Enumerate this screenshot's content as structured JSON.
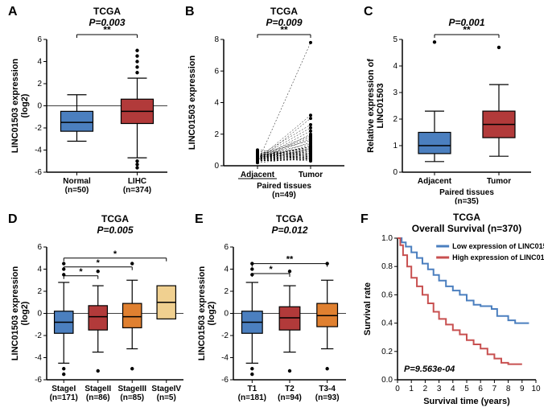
{
  "panelA": {
    "label": "A",
    "type": "boxplot",
    "title": "TCGA",
    "subtitle": "P=0.003",
    "sig_marker": "**",
    "ylabel": "LINC01503 expression\n(log2)",
    "ylim": [
      -6,
      6
    ],
    "ytick_step": 2,
    "categories": [
      "Normal\n(n=50)",
      "LIHC\n(n=374)"
    ],
    "boxes": [
      {
        "color": "#4b7fbf",
        "median": -1.5,
        "q1": -2.3,
        "q3": -0.5,
        "wlo": -3.2,
        "whi": 1.0,
        "outliers": []
      },
      {
        "color": "#b23a3a",
        "median": -0.5,
        "q1": -1.6,
        "q3": 0.6,
        "wlo": -4.7,
        "whi": 2.5,
        "outliers": [
          3.0,
          3.5,
          4.0,
          4.5,
          5.0,
          -5.0,
          -5.3,
          -5.6
        ]
      }
    ],
    "axis_color": "#000000",
    "box_border": "#000000",
    "whisker_color": "#000000",
    "outlier_color": "#000000",
    "background": "#ffffff",
    "title_fontsize": 12,
    "label_fontsize": 11,
    "tick_fontsize": 10
  },
  "panelB": {
    "label": "B",
    "type": "paired-dot-line",
    "title": "TCGA",
    "subtitle": "P=0.009",
    "sig_marker": "**",
    "ylabel": "LINC01503 expression",
    "ylim": [
      0,
      8
    ],
    "ytick_step": 2,
    "categories": [
      "Adjacent",
      "Tumor"
    ],
    "xgroup_label": "Paired tissues\n(n=49)",
    "pairs": [
      [
        0.3,
        0.4
      ],
      [
        0.2,
        0.5
      ],
      [
        0.4,
        0.6
      ],
      [
        0.3,
        0.7
      ],
      [
        0.5,
        0.8
      ],
      [
        0.4,
        0.9
      ],
      [
        0.6,
        1.0
      ],
      [
        0.3,
        1.1
      ],
      [
        0.5,
        1.2
      ],
      [
        0.4,
        1.3
      ],
      [
        0.6,
        1.4
      ],
      [
        0.3,
        1.5
      ],
      [
        0.7,
        1.6
      ],
      [
        0.4,
        1.7
      ],
      [
        0.5,
        1.8
      ],
      [
        0.6,
        1.9
      ],
      [
        0.3,
        2.0
      ],
      [
        0.8,
        0.4
      ],
      [
        0.7,
        0.5
      ],
      [
        0.9,
        0.6
      ],
      [
        0.4,
        2.2
      ],
      [
        0.5,
        2.4
      ],
      [
        0.6,
        2.6
      ],
      [
        0.3,
        3.0
      ],
      [
        0.4,
        3.2
      ],
      [
        0.5,
        0.3
      ],
      [
        0.8,
        0.5
      ],
      [
        1.0,
        0.7
      ],
      [
        0.6,
        0.4
      ],
      [
        0.9,
        0.6
      ],
      [
        0.3,
        0.8
      ],
      [
        0.4,
        1.0
      ],
      [
        0.5,
        1.2
      ],
      [
        0.2,
        7.8
      ],
      [
        0.6,
        0.9
      ],
      [
        0.7,
        1.1
      ],
      [
        0.3,
        0.5
      ],
      [
        0.4,
        0.7
      ],
      [
        0.5,
        0.9
      ],
      [
        0.6,
        1.1
      ],
      [
        0.3,
        0.6
      ],
      [
        0.4,
        0.8
      ],
      [
        0.5,
        1.0
      ],
      [
        0.6,
        1.2
      ],
      [
        0.3,
        0.4
      ],
      [
        0.4,
        0.6
      ],
      [
        0.5,
        0.8
      ],
      [
        0.6,
        1.0
      ],
      [
        0.3,
        0.5
      ]
    ],
    "point_color": "#000000",
    "line_color": "#000000",
    "axis_color": "#000000",
    "background": "#ffffff",
    "title_fontsize": 12,
    "label_fontsize": 11,
    "tick_fontsize": 10,
    "underline_adjacent": true
  },
  "panelC": {
    "label": "C",
    "type": "boxplot",
    "title": "",
    "subtitle": "P=0.001",
    "sig_marker": "**",
    "ylabel": "Relative expression of\nLINC01503",
    "ylim": [
      0,
      5
    ],
    "ytick_step": 1,
    "categories": [
      "Adjacent",
      "Tumor"
    ],
    "xgroup_label": "Paired tissues\n(n=35)",
    "boxes": [
      {
        "color": "#4b7fbf",
        "median": 1.0,
        "q1": 0.7,
        "q3": 1.5,
        "wlo": 0.4,
        "whi": 2.3,
        "outliers": [
          4.9
        ]
      },
      {
        "color": "#b23a3a",
        "median": 1.8,
        "q1": 1.3,
        "q3": 2.3,
        "wlo": 0.6,
        "whi": 3.3,
        "outliers": [
          4.7
        ]
      }
    ],
    "axis_color": "#000000",
    "box_border": "#000000",
    "background": "#ffffff",
    "title_fontsize": 12,
    "label_fontsize": 11,
    "tick_fontsize": 10
  },
  "panelD": {
    "label": "D",
    "type": "boxplot",
    "title": "TCGA",
    "subtitle": "P=0.005",
    "ylabel": "LINC01503 expression\n(log2)",
    "ylim": [
      -6,
      6
    ],
    "ytick_step": 2,
    "categories": [
      "StageI\n(n=171)",
      "StageII\n(n=86)",
      "StageIII\n(n=85)",
      "StageIV\n(n=5)"
    ],
    "boxes": [
      {
        "color": "#4b7fbf",
        "median": -0.8,
        "q1": -1.8,
        "q3": 0.2,
        "wlo": -4.5,
        "whi": 2.8,
        "outliers": [
          3.5,
          4.0,
          4.5,
          -5.0,
          -5.5
        ]
      },
      {
        "color": "#b23a3a",
        "median": -0.3,
        "q1": -1.5,
        "q3": 0.7,
        "wlo": -3.5,
        "whi": 2.5,
        "outliers": [
          3.8,
          -5.2
        ]
      },
      {
        "color": "#e08030",
        "median": -0.3,
        "q1": -1.3,
        "q3": 0.9,
        "wlo": -3.2,
        "whi": 3.0,
        "outliers": [
          4.5,
          -5.0
        ]
      },
      {
        "color": "#f0d090",
        "median": 1.0,
        "q1": -0.5,
        "q3": 2.5,
        "wlo": -0.5,
        "whi": 2.5,
        "outliers": []
      }
    ],
    "sig_bars": [
      {
        "from": 0,
        "to": 3,
        "label": "*",
        "y": 5.0
      },
      {
        "from": 0,
        "to": 2,
        "label": "*",
        "y": 4.2
      },
      {
        "from": 0,
        "to": 1,
        "label": "*",
        "y": 3.4
      }
    ],
    "axis_color": "#000000",
    "background": "#ffffff",
    "title_fontsize": 12,
    "label_fontsize": 11,
    "tick_fontsize": 10
  },
  "panelE": {
    "label": "E",
    "type": "boxplot",
    "title": "TCGA",
    "subtitle": "P=0.012",
    "ylabel": "LINC01503 expression\n(log2)",
    "ylim": [
      -6,
      6
    ],
    "ytick_step": 2,
    "categories": [
      "T1\n(n=181)",
      "T2\n(n=94)",
      "T3-4\n(n=93)"
    ],
    "boxes": [
      {
        "color": "#4b7fbf",
        "median": -0.8,
        "q1": -1.8,
        "q3": 0.2,
        "wlo": -4.5,
        "whi": 2.8,
        "outliers": [
          3.5,
          4.0,
          4.5,
          -5.0,
          -5.5
        ]
      },
      {
        "color": "#b23a3a",
        "median": -0.4,
        "q1": -1.5,
        "q3": 0.6,
        "wlo": -3.5,
        "whi": 2.5,
        "outliers": [
          3.8,
          -5.2
        ]
      },
      {
        "color": "#e08030",
        "median": -0.2,
        "q1": -1.2,
        "q3": 0.9,
        "wlo": -3.2,
        "whi": 3.0,
        "outliers": [
          4.5,
          -5.0
        ]
      }
    ],
    "sig_bars": [
      {
        "from": 0,
        "to": 2,
        "label": "**",
        "y": 4.5
      },
      {
        "from": 0,
        "to": 1,
        "label": "*",
        "y": 3.6
      }
    ],
    "axis_color": "#000000",
    "background": "#ffffff",
    "title_fontsize": 12,
    "label_fontsize": 11,
    "tick_fontsize": 10
  },
  "panelF": {
    "label": "F",
    "type": "survival",
    "title": "TCGA",
    "subtitle": "Overall Survival (n=370)",
    "ylabel": "Survival rate",
    "xlabel": "Survival time (years)",
    "ylim": [
      0,
      1.0
    ],
    "ytick_step": 0.2,
    "xlim": [
      0,
      10
    ],
    "xtick_step": 1,
    "pvalue_text": "P=9.563e-04",
    "legend": [
      {
        "label": "Low expression of LINC01503",
        "color": "#4b7fbf"
      },
      {
        "label": "High expression of LINC01503",
        "color": "#c85050"
      }
    ],
    "series": [
      {
        "color": "#4b7fbf",
        "points": [
          [
            0,
            1.0
          ],
          [
            0.3,
            0.97
          ],
          [
            0.6,
            0.94
          ],
          [
            1.0,
            0.9
          ],
          [
            1.4,
            0.86
          ],
          [
            1.8,
            0.82
          ],
          [
            2.2,
            0.78
          ],
          [
            2.6,
            0.74
          ],
          [
            3.0,
            0.7
          ],
          [
            3.5,
            0.66
          ],
          [
            4.0,
            0.63
          ],
          [
            4.5,
            0.6
          ],
          [
            5.0,
            0.56
          ],
          [
            5.5,
            0.53
          ],
          [
            6.0,
            0.52
          ],
          [
            6.8,
            0.5
          ],
          [
            7.2,
            0.45
          ],
          [
            8.0,
            0.42
          ],
          [
            8.5,
            0.4
          ],
          [
            9.5,
            0.4
          ]
        ]
      },
      {
        "color": "#c85050",
        "points": [
          [
            0,
            1.0
          ],
          [
            0.2,
            0.95
          ],
          [
            0.4,
            0.88
          ],
          [
            0.7,
            0.8
          ],
          [
            1.0,
            0.72
          ],
          [
            1.4,
            0.66
          ],
          [
            1.8,
            0.6
          ],
          [
            2.2,
            0.54
          ],
          [
            2.6,
            0.48
          ],
          [
            3.0,
            0.43
          ],
          [
            3.5,
            0.39
          ],
          [
            4.0,
            0.35
          ],
          [
            4.5,
            0.32
          ],
          [
            5.0,
            0.28
          ],
          [
            5.5,
            0.25
          ],
          [
            6.0,
            0.22
          ],
          [
            6.5,
            0.18
          ],
          [
            7.0,
            0.15
          ],
          [
            7.5,
            0.12
          ],
          [
            8.0,
            0.11
          ],
          [
            9.0,
            0.11
          ]
        ]
      }
    ],
    "axis_color": "#000000",
    "background": "#ffffff",
    "title_fontsize": 12,
    "label_fontsize": 11,
    "tick_fontsize": 10
  }
}
